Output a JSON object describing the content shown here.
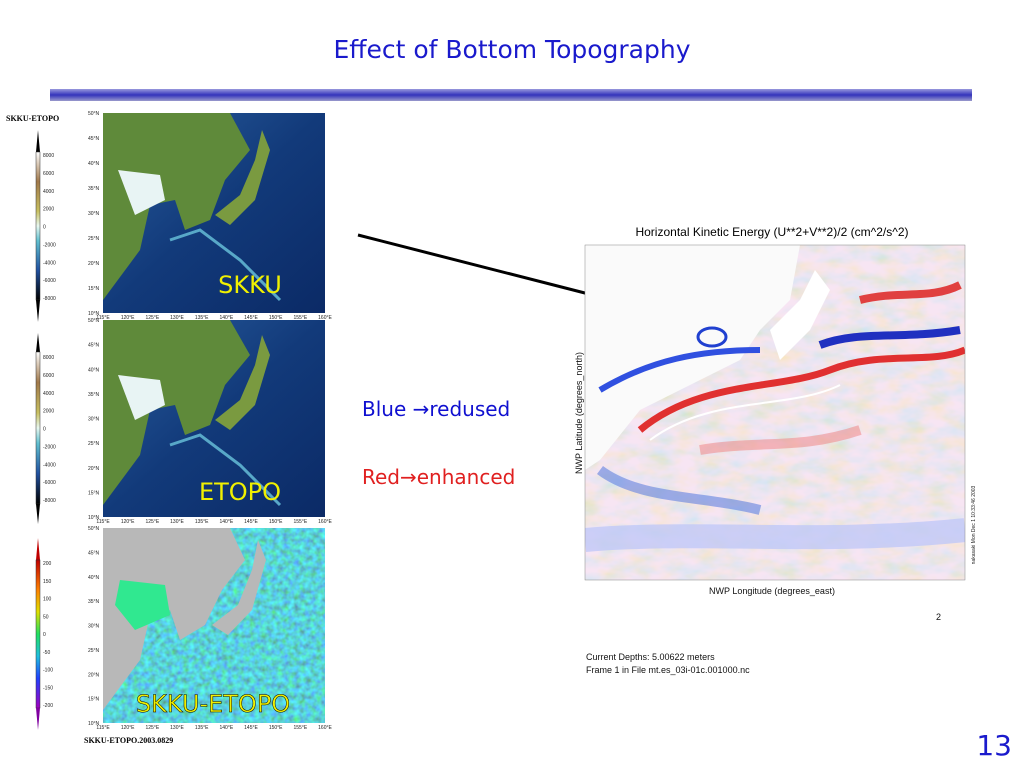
{
  "title": "Effect of Bottom Topography",
  "left_panel": {
    "header": "SKKU-ETOPO",
    "footer": "SKKU-ETOPO.2003.0829",
    "maps": [
      {
        "label": "SKKU"
      },
      {
        "label": "ETOPO"
      },
      {
        "label": "SKKU-ETOPO"
      }
    ],
    "topo_colorbar_ticks": [
      "8000",
      "6000",
      "4000",
      "2000",
      "0",
      "-2000",
      "-4000",
      "-6000",
      "-8000"
    ],
    "diff_colorbar_ticks": [
      "200",
      "150",
      "100",
      "50",
      "0",
      "-50",
      "-100",
      "-150",
      "-200"
    ],
    "lat_labels": [
      "50°N",
      "45°N",
      "40°N",
      "35°N",
      "30°N",
      "25°N",
      "20°N",
      "15°N",
      "10°N"
    ],
    "lon_labels": [
      "115°E",
      "120°E",
      "125°E",
      "130°E",
      "135°E",
      "140°E",
      "145°E",
      "150°E",
      "155°E",
      "160°E"
    ]
  },
  "annotations": {
    "blue": "Blue →redused",
    "red": "Red→enhanced"
  },
  "right_panel": {
    "title": "Horizontal Kinetic Energy (U**2+V**2)/2 (cm^2/s^2)",
    "y_label": "NWP Latitude (degrees_north)",
    "x_label": "NWP Longitude (degrees_east)",
    "stamp": "nakasaki Mon Dec 1 10:33:46 2003",
    "frame_number": "2",
    "depth": "Current Depths: 5.00622 meters",
    "file": "Frame 1 in File mt.es_03i-01c.001000.nc"
  },
  "page_number": "13"
}
